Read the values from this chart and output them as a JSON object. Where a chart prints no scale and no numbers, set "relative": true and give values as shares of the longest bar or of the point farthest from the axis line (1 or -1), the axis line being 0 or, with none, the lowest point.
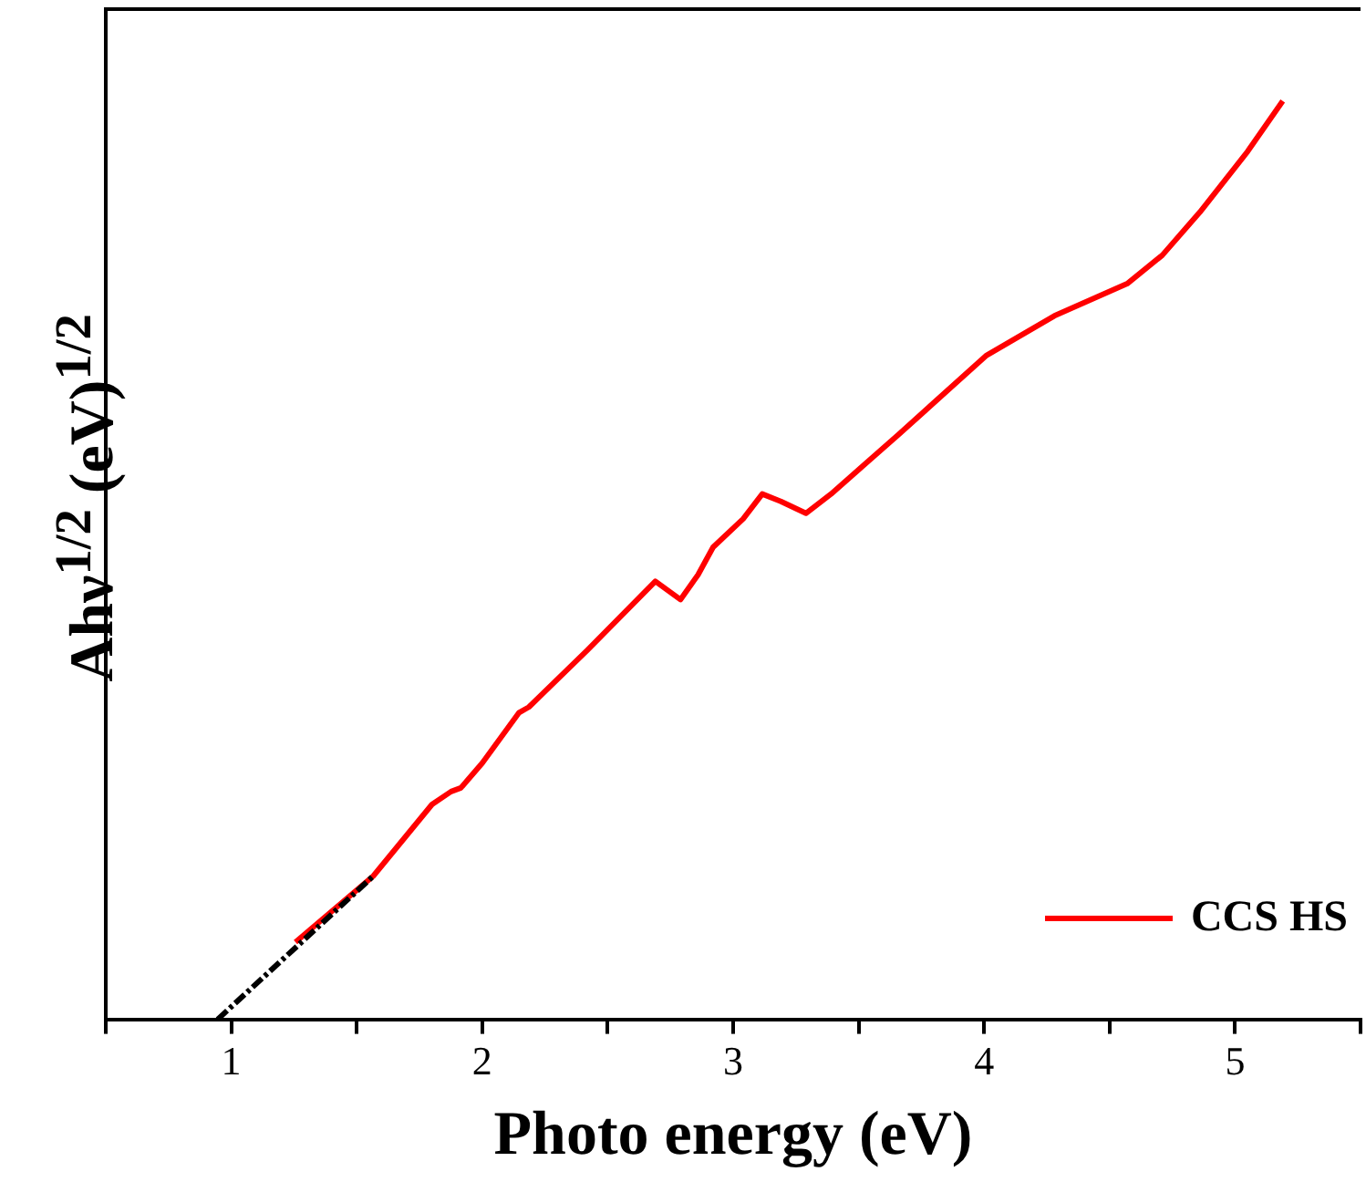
{
  "chart_data": {
    "type": "line",
    "relative": true,
    "xlabel": "Photo energy (eV)",
    "ylabel": "Ahν$^{1/2}$ (eV)$^{1/2}$",
    "xlim": [
      0.5,
      5.5
    ],
    "xticks": [
      {
        "value": 0.5,
        "label": null
      },
      1,
      {
        "value": 1.5,
        "label": null
      },
      2,
      {
        "value": 2.5,
        "label": null
      },
      3,
      {
        "value": 3.5,
        "label": null
      },
      4,
      {
        "value": 4.5,
        "label": null
      },
      5,
      {
        "value": 5.5,
        "label": null
      }
    ],
    "legend": "bottom right",
    "marker": "none",
    "series": [
      {
        "name": "CCS HS",
        "color": "#ff0000",
        "line_style": "solid",
        "x": [
          1.256,
          1.566,
          1.8,
          1.876,
          1.915,
          2.0,
          2.147,
          2.186,
          2.419,
          2.69,
          2.79,
          2.86,
          2.92,
          3.04,
          3.116,
          3.19,
          3.29,
          3.39,
          3.66,
          4.01,
          4.28,
          4.57,
          4.71,
          4.86,
          5.05,
          5.19
        ],
        "values": [
          0.084,
          0.156,
          0.234,
          0.248,
          0.252,
          0.279,
          0.334,
          0.34,
          0.402,
          0.477,
          0.457,
          0.484,
          0.514,
          0.545,
          0.572,
          0.564,
          0.551,
          0.572,
          0.637,
          0.723,
          0.766,
          0.801,
          0.832,
          0.879,
          0.945,
          1.0
        ]
      },
      {
        "color": "#000000",
        "line_style": "dashed",
        "x": [
          0.946,
          1.566
        ],
        "values": [
          0,
          0.156
        ]
      }
    ]
  }
}
